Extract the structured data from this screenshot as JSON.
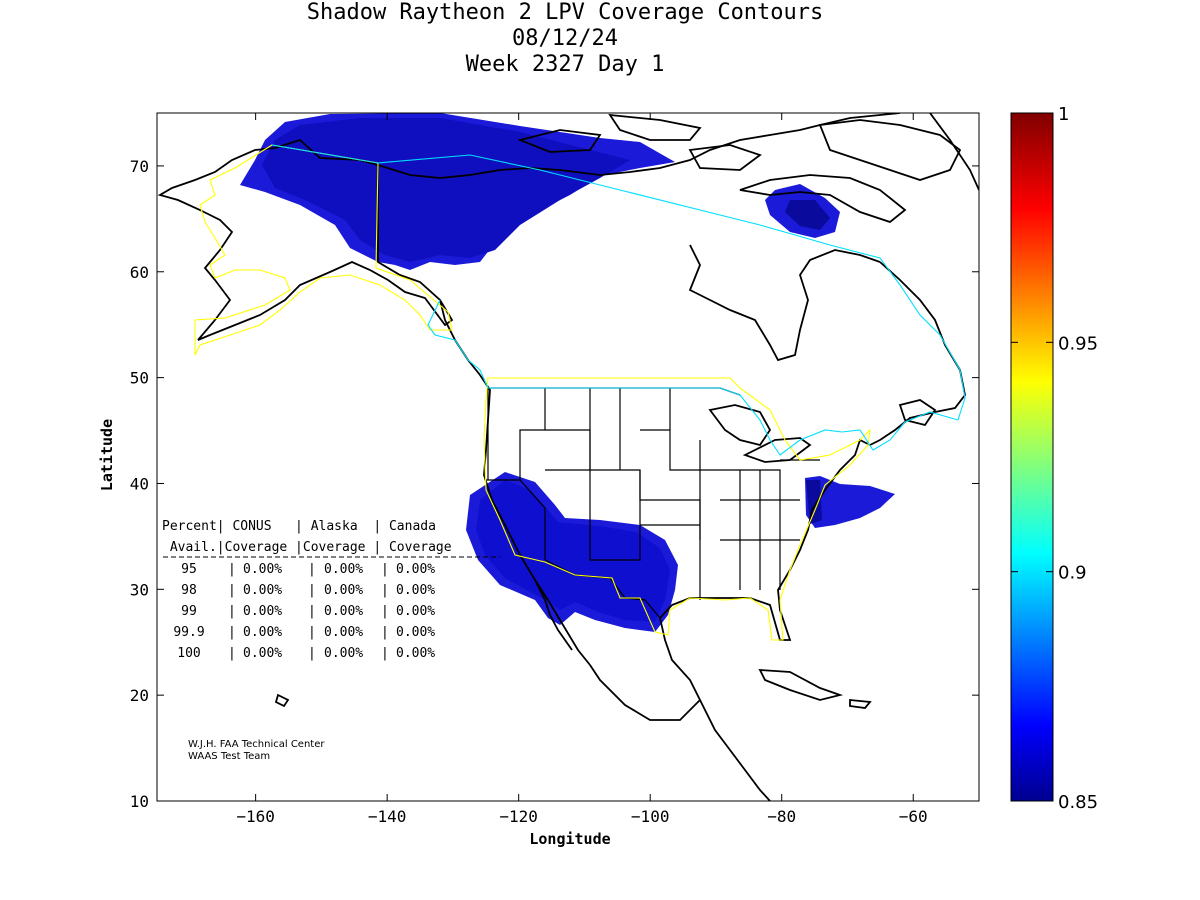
{
  "title": {
    "line1": "Shadow Raytheon 2 LPV Coverage Contours",
    "line2": "08/12/24",
    "line3": "Week 2327 Day 1"
  },
  "map": {
    "xlabel": "Longitude",
    "ylabel": "Latitude",
    "xlim": [
      -175,
      -50
    ],
    "ylim": [
      10,
      75
    ],
    "xticks": [
      -160,
      -140,
      -120,
      -100,
      -80,
      -60
    ],
    "yticks": [
      10,
      20,
      30,
      40,
      50,
      60,
      70
    ],
    "coverage_fill_color": "#1a1ad8",
    "coverage_dark_color": "#0a0a9c",
    "service_boundary_colors": {
      "conus_alaska": "#ffff00",
      "canada": "#00e0ff"
    }
  },
  "stats_table": {
    "header1": "Percent| CONUS   | Alaska  | Canada",
    "header2": " Avail.|Coverage |Coverage | Coverage",
    "rows": [
      {
        "avail": "95",
        "conus": "0.00%",
        "alaska": "0.00%",
        "canada": "0.00%"
      },
      {
        "avail": "98",
        "conus": "0.00%",
        "alaska": "0.00%",
        "canada": "0.00%"
      },
      {
        "avail": "99",
        "conus": "0.00%",
        "alaska": "0.00%",
        "canada": "0.00%"
      },
      {
        "avail": "99.9",
        "conus": "0.00%",
        "alaska": "0.00%",
        "canada": "0.00%"
      },
      {
        "avail": "100",
        "conus": "0.00%",
        "alaska": "0.00%",
        "canada": "0.00%"
      }
    ]
  },
  "credit": {
    "line1": "W.J.H. FAA Technical Center",
    "line2": "WAAS Test Team"
  },
  "colorbar": {
    "min": 0.85,
    "max": 1,
    "ticks": [
      "1",
      "0.95",
      "0.9",
      "0.85"
    ],
    "colormap": "jet"
  }
}
